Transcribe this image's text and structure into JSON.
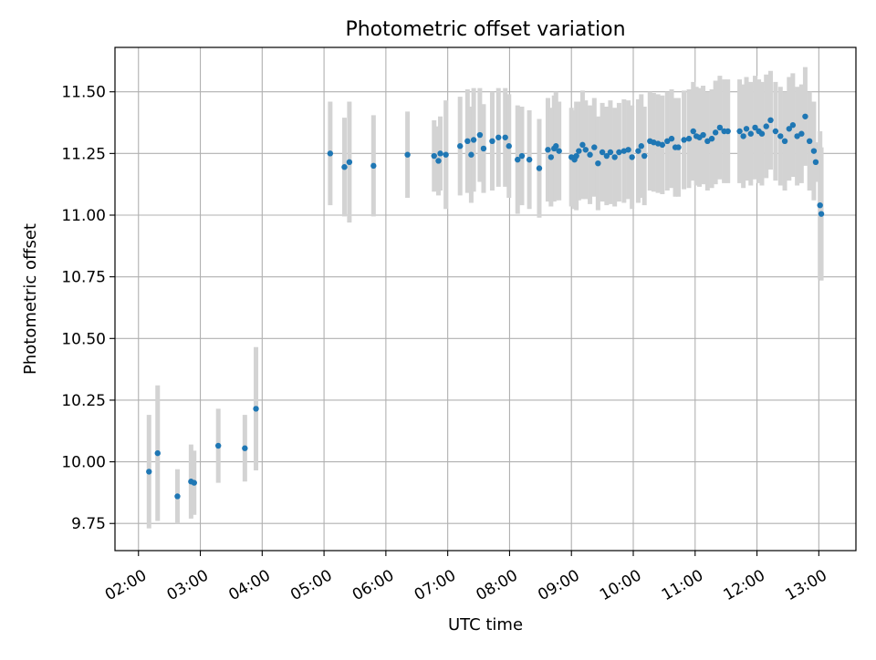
{
  "chart_data": {
    "type": "scatter",
    "title": "Photometric offset variation",
    "xlabel": "UTC time",
    "ylabel": "Photometric offset",
    "x_unit": "hours (UTC)",
    "xlim": [
      1.62,
      13.6
    ],
    "ylim": [
      9.64,
      11.68
    ],
    "xticks": [
      2,
      3,
      4,
      5,
      6,
      7,
      8,
      9,
      10,
      11,
      12,
      13
    ],
    "xtick_labels": [
      "02:00",
      "03:00",
      "04:00",
      "05:00",
      "06:00",
      "07:00",
      "08:00",
      "09:00",
      "10:00",
      "11:00",
      "12:00",
      "13:00"
    ],
    "yticks": [
      9.75,
      10.0,
      10.25,
      10.5,
      10.75,
      11.0,
      11.25,
      11.5
    ],
    "ytick_labels": [
      "9.75",
      "10.00",
      "10.25",
      "10.50",
      "10.75",
      "11.00",
      "11.25",
      "11.50"
    ],
    "grid": true,
    "colors": {
      "point": "#1f77b4",
      "errorbar": "#d3d3d3",
      "grid": "#b0b0b0"
    },
    "series": [
      {
        "marker": "point",
        "has_errorbars": true,
        "points": [
          [
            2.17,
            9.96,
            0.23
          ],
          [
            2.31,
            10.035,
            0.275
          ],
          [
            2.63,
            9.86,
            0.11
          ],
          [
            2.85,
            9.92,
            0.15
          ],
          [
            2.9,
            9.915,
            0.13
          ],
          [
            3.29,
            10.065,
            0.15
          ],
          [
            3.72,
            10.055,
            0.135
          ],
          [
            3.9,
            10.215,
            0.25
          ],
          [
            5.1,
            11.25,
            0.21
          ],
          [
            5.33,
            11.195,
            0.2
          ],
          [
            5.41,
            11.215,
            0.245
          ],
          [
            5.8,
            11.2,
            0.205
          ],
          [
            6.35,
            11.245,
            0.175
          ],
          [
            6.78,
            11.24,
            0.145
          ],
          [
            6.85,
            11.22,
            0.14
          ],
          [
            6.88,
            11.25,
            0.15
          ],
          [
            6.97,
            11.245,
            0.22
          ],
          [
            7.2,
            11.28,
            0.2
          ],
          [
            7.32,
            11.3,
            0.21
          ],
          [
            7.38,
            11.245,
            0.195
          ],
          [
            7.42,
            11.305,
            0.21
          ],
          [
            7.52,
            11.325,
            0.19
          ],
          [
            7.58,
            11.27,
            0.18
          ],
          [
            7.72,
            11.3,
            0.2
          ],
          [
            7.82,
            11.315,
            0.2
          ],
          [
            7.93,
            11.315,
            0.2
          ],
          [
            7.99,
            11.28,
            0.21
          ],
          [
            8.13,
            11.225,
            0.22
          ],
          [
            8.2,
            11.24,
            0.2
          ],
          [
            8.32,
            11.225,
            0.2
          ],
          [
            8.48,
            11.19,
            0.2
          ],
          [
            8.62,
            11.265,
            0.21
          ],
          [
            8.67,
            11.235,
            0.2
          ],
          [
            8.72,
            11.27,
            0.215
          ],
          [
            8.75,
            11.28,
            0.22
          ],
          [
            8.8,
            11.26,
            0.2
          ],
          [
            9.0,
            11.235,
            0.2
          ],
          [
            9.05,
            11.225,
            0.2
          ],
          [
            9.08,
            11.24,
            0.22
          ],
          [
            9.12,
            11.26,
            0.2
          ],
          [
            9.18,
            11.285,
            0.22
          ],
          [
            9.23,
            11.265,
            0.2
          ],
          [
            9.3,
            11.245,
            0.2
          ],
          [
            9.37,
            11.275,
            0.2
          ],
          [
            9.43,
            11.21,
            0.19
          ],
          [
            9.5,
            11.255,
            0.2
          ],
          [
            9.57,
            11.24,
            0.2
          ],
          [
            9.63,
            11.255,
            0.21
          ],
          [
            9.7,
            11.235,
            0.2
          ],
          [
            9.77,
            11.255,
            0.2
          ],
          [
            9.85,
            11.26,
            0.21
          ],
          [
            9.92,
            11.265,
            0.2
          ],
          [
            9.98,
            11.235,
            0.21
          ],
          [
            10.08,
            11.26,
            0.21
          ],
          [
            10.13,
            11.28,
            0.21
          ],
          [
            10.18,
            11.24,
            0.2
          ],
          [
            10.27,
            11.3,
            0.2
          ],
          [
            10.33,
            11.295,
            0.2
          ],
          [
            10.4,
            11.29,
            0.2
          ],
          [
            10.47,
            11.285,
            0.2
          ],
          [
            10.55,
            11.3,
            0.2
          ],
          [
            10.62,
            11.31,
            0.2
          ],
          [
            10.68,
            11.275,
            0.2
          ],
          [
            10.73,
            11.275,
            0.2
          ],
          [
            10.82,
            11.305,
            0.2
          ],
          [
            10.9,
            11.31,
            0.2
          ],
          [
            10.97,
            11.34,
            0.2
          ],
          [
            11.02,
            11.32,
            0.2
          ],
          [
            11.07,
            11.315,
            0.2
          ],
          [
            11.13,
            11.325,
            0.2
          ],
          [
            11.2,
            11.3,
            0.2
          ],
          [
            11.27,
            11.31,
            0.2
          ],
          [
            11.33,
            11.335,
            0.21
          ],
          [
            11.4,
            11.355,
            0.21
          ],
          [
            11.47,
            11.34,
            0.21
          ],
          [
            11.53,
            11.34,
            0.21
          ],
          [
            11.72,
            11.34,
            0.21
          ],
          [
            11.78,
            11.32,
            0.21
          ],
          [
            11.83,
            11.35,
            0.21
          ],
          [
            11.9,
            11.33,
            0.21
          ],
          [
            11.97,
            11.355,
            0.21
          ],
          [
            12.03,
            11.34,
            0.21
          ],
          [
            12.08,
            11.33,
            0.21
          ],
          [
            12.15,
            11.36,
            0.21
          ],
          [
            12.22,
            11.385,
            0.2
          ],
          [
            12.3,
            11.34,
            0.2
          ],
          [
            12.38,
            11.32,
            0.2
          ],
          [
            12.45,
            11.3,
            0.2
          ],
          [
            12.52,
            11.35,
            0.21
          ],
          [
            12.58,
            11.365,
            0.21
          ],
          [
            12.65,
            11.32,
            0.2
          ],
          [
            12.72,
            11.33,
            0.2
          ],
          [
            12.78,
            11.4,
            0.2
          ],
          [
            12.85,
            11.3,
            0.2
          ],
          [
            12.92,
            11.26,
            0.2
          ],
          [
            12.95,
            11.215,
            0.08
          ],
          [
            13.02,
            11.04,
            0.3
          ],
          [
            13.04,
            11.005,
            0.27
          ]
        ]
      }
    ]
  }
}
